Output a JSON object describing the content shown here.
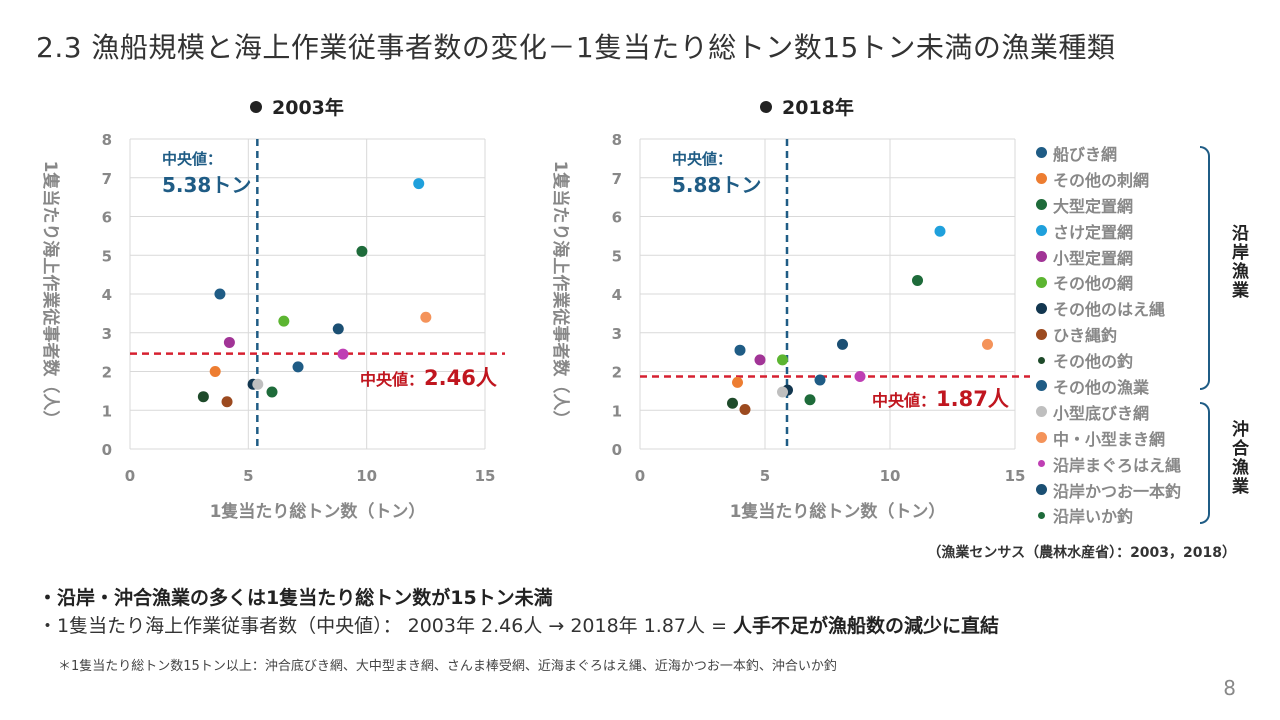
{
  "title": "2.3 漁船規模と海上作業従事者数の変化－1隻当たり総トン数15トン未満の漁業種類",
  "legend": {
    "items": [
      {
        "label": "船びき網",
        "color": "#1f5c85",
        "group": "coastal"
      },
      {
        "label": "その他の刺網",
        "color": "#ed7d31",
        "group": "coastal"
      },
      {
        "label": "大型定置網",
        "color": "#1e6b3a",
        "group": "coastal"
      },
      {
        "label": "さけ定置網",
        "color": "#1fa0dc",
        "group": "coastal"
      },
      {
        "label": "小型定置網",
        "color": "#a13496",
        "group": "coastal"
      },
      {
        "label": "その他の網",
        "color": "#5cb531",
        "group": "coastal"
      },
      {
        "label": "その他のはえ縄",
        "color": "#12364f",
        "group": "coastal"
      },
      {
        "label": "ひき縄釣",
        "color": "#9c4a1f",
        "group": "coastal"
      },
      {
        "label": "その他の釣",
        "color": "#1e4a2a",
        "group": "coastal",
        "small": true
      },
      {
        "label": "その他の漁業",
        "color": "#1f5c85",
        "group": "coastal"
      },
      {
        "label": "小型底びき網",
        "color": "#bfbfbf",
        "group": "offshore"
      },
      {
        "label": "中・小型まき網",
        "color": "#f4935a",
        "group": "offshore"
      },
      {
        "label": "沿岸まぐろはえ縄",
        "color": "#bf3fb4",
        "group": "offshore",
        "small": true
      },
      {
        "label": "沿岸かつお一本釣",
        "color": "#1b4f73",
        "group": "offshore"
      },
      {
        "label": "沿岸いか釣",
        "color": "#1e6b3a",
        "group": "offshore",
        "small": true
      }
    ],
    "coastal_label": "沿岸漁業",
    "offshore_label": "沖合漁業"
  },
  "source": "（漁業センサス（農林水産省）：2003，2018）",
  "bullets": {
    "line1": "・沿岸・沖合漁業の多くは1隻当たり総トン数が15トン未満",
    "line2_prefix": "・1隻当たり海上作業従事者数（中央値）： 2003年 2.46人 → 2018年 1.87人 = ",
    "line2_strong": "人手不足が漁船数の減少に直結"
  },
  "footnote": "＊1隻当たり総トン数15トン以上：沖合底びき網、大中型まき網、さんま棒受網、近海まぐろはえ縄、近海かつお一本釣、沖合いか釣",
  "page_number": "8",
  "chart_data": [
    {
      "type": "scatter",
      "title": "2003年",
      "xlabel": "1隻当たり総トン数（トン）",
      "ylabel": "1隻当たり海上作業従事者数（人）",
      "xlim": [
        0,
        15
      ],
      "ylim": [
        0,
        8
      ],
      "xticks": [
        0,
        5,
        10,
        15
      ],
      "yticks": [
        0,
        1,
        2,
        3,
        4,
        5,
        6,
        7,
        8
      ],
      "grid": true,
      "median_x": 5.38,
      "median_x_label_1": "中央値：",
      "median_x_label_2": "5.38トン",
      "median_y": 2.46,
      "median_y_label_1": "中央値：",
      "median_y_label_2": "2.46人",
      "points": [
        {
          "series": "船びき網",
          "x": 3.8,
          "y": 4.0,
          "color": "#1f5c85"
        },
        {
          "series": "その他の刺網",
          "x": 3.6,
          "y": 2.0,
          "color": "#ed7d31"
        },
        {
          "series": "大型定置網",
          "x": 9.8,
          "y": 5.1,
          "color": "#1e6b3a"
        },
        {
          "series": "さけ定置網",
          "x": 12.2,
          "y": 6.85,
          "color": "#1fa0dc"
        },
        {
          "series": "小型定置網",
          "x": 4.2,
          "y": 2.75,
          "color": "#a13496"
        },
        {
          "series": "その他の網",
          "x": 6.5,
          "y": 3.3,
          "color": "#5cb531"
        },
        {
          "series": "その他のはえ縄",
          "x": 5.2,
          "y": 1.67,
          "color": "#12364f"
        },
        {
          "series": "ひき縄釣",
          "x": 4.1,
          "y": 1.22,
          "color": "#9c4a1f"
        },
        {
          "series": "その他の釣",
          "x": 3.1,
          "y": 1.35,
          "color": "#1e4a2a"
        },
        {
          "series": "その他の漁業",
          "x": 7.1,
          "y": 2.12,
          "color": "#1f5c85"
        },
        {
          "series": "小型底びき網",
          "x": 5.4,
          "y": 1.67,
          "color": "#bfbfbf"
        },
        {
          "series": "中・小型まき網",
          "x": 12.5,
          "y": 3.4,
          "color": "#f4935a"
        },
        {
          "series": "沿岸まぐろはえ縄",
          "x": 9.0,
          "y": 2.45,
          "color": "#bf3fb4"
        },
        {
          "series": "沿岸かつお一本釣",
          "x": 8.8,
          "y": 3.1,
          "color": "#1b4f73"
        },
        {
          "series": "沿岸いか釣",
          "x": 6.0,
          "y": 1.47,
          "color": "#1e6b3a"
        }
      ]
    },
    {
      "type": "scatter",
      "title": "2018年",
      "xlabel": "1隻当たり総トン数（トン）",
      "ylabel": "1隻当たり海上作業従事者数（人）",
      "xlim": [
        0,
        15
      ],
      "ylim": [
        0,
        8
      ],
      "xticks": [
        0,
        5,
        10,
        15
      ],
      "yticks": [
        0,
        1,
        2,
        3,
        4,
        5,
        6,
        7,
        8
      ],
      "grid": true,
      "median_x": 5.88,
      "median_x_label_1": "中央値：",
      "median_x_label_2": "5.88トン",
      "median_y": 1.87,
      "median_y_label_1": "中央値：",
      "median_y_label_2": "1.87人",
      "points": [
        {
          "series": "船びき網",
          "x": 4.0,
          "y": 2.55,
          "color": "#1f5c85"
        },
        {
          "series": "その他の刺網",
          "x": 3.9,
          "y": 1.72,
          "color": "#ed7d31"
        },
        {
          "series": "大型定置網",
          "x": 11.1,
          "y": 4.35,
          "color": "#1e6b3a"
        },
        {
          "series": "さけ定置網",
          "x": 12.0,
          "y": 5.62,
          "color": "#1fa0dc"
        },
        {
          "series": "小型定置網",
          "x": 4.8,
          "y": 2.3,
          "color": "#a13496"
        },
        {
          "series": "その他の網",
          "x": 5.7,
          "y": 2.3,
          "color": "#5cb531"
        },
        {
          "series": "その他のはえ縄",
          "x": 5.9,
          "y": 1.52,
          "color": "#12364f"
        },
        {
          "series": "ひき縄釣",
          "x": 4.2,
          "y": 1.02,
          "color": "#9c4a1f"
        },
        {
          "series": "その他の釣",
          "x": 3.7,
          "y": 1.18,
          "color": "#1e4a2a"
        },
        {
          "series": "その他の漁業",
          "x": 7.2,
          "y": 1.78,
          "color": "#1f5c85"
        },
        {
          "series": "小型底びき網",
          "x": 5.7,
          "y": 1.47,
          "color": "#bfbfbf"
        },
        {
          "series": "中・小型まき網",
          "x": 13.9,
          "y": 2.7,
          "color": "#f4935a"
        },
        {
          "series": "沿岸まぐろはえ縄",
          "x": 8.8,
          "y": 1.87,
          "color": "#bf3fb4"
        },
        {
          "series": "沿岸かつお一本釣",
          "x": 8.1,
          "y": 2.7,
          "color": "#1b4f73"
        },
        {
          "series": "沿岸いか釣",
          "x": 6.8,
          "y": 1.27,
          "color": "#1e6b3a"
        }
      ]
    }
  ]
}
